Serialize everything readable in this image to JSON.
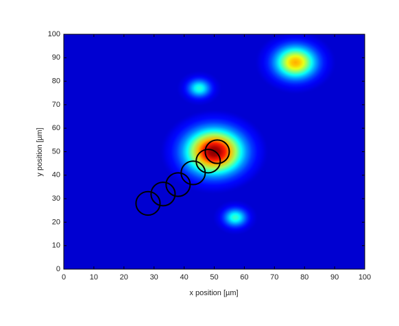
{
  "chart_data": {
    "type": "heatmap",
    "xlabel": "x position [µm]",
    "ylabel": "y position  [µm]",
    "xlim": [
      0,
      100
    ],
    "ylim": [
      0,
      100
    ],
    "xticks": [
      0,
      10,
      20,
      30,
      40,
      50,
      60,
      70,
      80,
      90,
      100
    ],
    "yticks": [
      0,
      10,
      20,
      30,
      40,
      50,
      60,
      70,
      80,
      90,
      100
    ],
    "peaks": {
      "x": [
        50,
        77,
        45,
        57
      ],
      "y": [
        50,
        88,
        77,
        22
      ],
      "amplitude": [
        1,
        0.68,
        0.36,
        0.38
      ],
      "width": [
        6,
        4.5,
        2.5,
        2.5
      ]
    },
    "ellipses": {
      "color": "#000000",
      "x": [
        28,
        33,
        38,
        43,
        48,
        51
      ],
      "y": [
        28,
        32,
        36,
        41,
        46,
        50
      ],
      "rx": [
        4,
        4,
        4,
        4,
        4,
        4
      ],
      "ry": [
        5,
        5,
        5,
        5,
        5,
        5
      ]
    }
  }
}
